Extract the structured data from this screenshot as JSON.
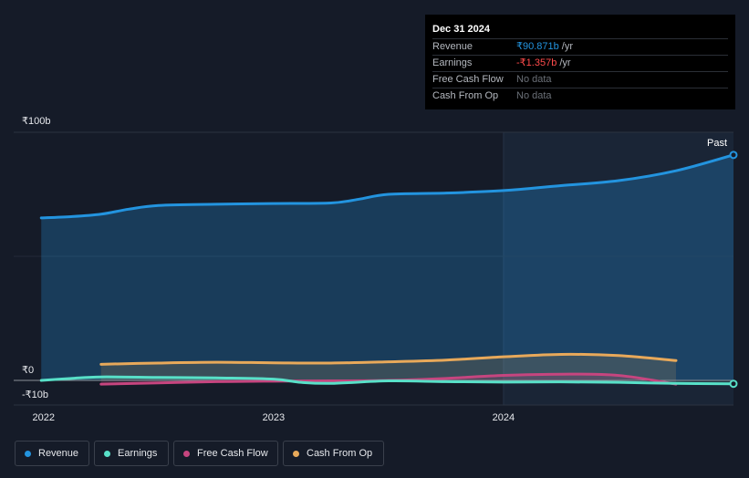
{
  "tooltip": {
    "date": "Dec 31 2024",
    "rows": [
      {
        "label": "Revenue",
        "value": "₹90.871b",
        "unit": "/yr"
      },
      {
        "label": "Earnings",
        "value": "-₹1.357b",
        "unit": "/yr"
      },
      {
        "label": "Free Cash Flow",
        "value": "No data",
        "unit": ""
      },
      {
        "label": "Cash From Op",
        "value": "No data",
        "unit": ""
      }
    ]
  },
  "legend": {
    "revenue": "Revenue",
    "earnings": "Earnings",
    "fcf": "Free Cash Flow",
    "cfo": "Cash From Op"
  },
  "colors": {
    "revenue": "#2394df",
    "earnings": "#58e0c8",
    "fcf": "#c6457f",
    "cfo": "#e8a95a"
  },
  "chart_data": {
    "type": "line",
    "past_label": "Past",
    "y_ticks": [
      {
        "value": 100,
        "label": "₹100b"
      },
      {
        "value": 0,
        "label": "₹0"
      },
      {
        "value": -10,
        "label": "-₹10b"
      }
    ],
    "x_ticks": [
      {
        "value": 2022,
        "label": "2022"
      },
      {
        "value": 2023,
        "label": "2023"
      },
      {
        "value": 2024,
        "label": "2024"
      }
    ],
    "ylim": [
      -10,
      100
    ],
    "xlim": [
      2021.87,
      2025.0
    ],
    "series": [
      {
        "key": "revenue",
        "name": "Revenue",
        "area": true,
        "x": [
          2021.99,
          2022.12,
          2022.25,
          2022.37,
          2022.5,
          2022.75,
          2023.0,
          2023.25,
          2023.37,
          2023.5,
          2023.75,
          2024.0,
          2024.25,
          2024.5,
          2024.75,
          2025.0
        ],
        "y": [
          65.5,
          66.0,
          67.0,
          69.0,
          70.5,
          71.0,
          71.3,
          71.5,
          73.0,
          75.0,
          75.5,
          76.5,
          78.5,
          80.5,
          84.5,
          90.871
        ]
      },
      {
        "key": "earnings",
        "name": "Earnings",
        "area": true,
        "x": [
          2021.99,
          2022.12,
          2022.25,
          2022.5,
          2022.75,
          2023.0,
          2023.12,
          2023.25,
          2023.5,
          2023.75,
          2024.0,
          2024.25,
          2024.5,
          2024.75,
          2025.0
        ],
        "y": [
          0.0,
          0.8,
          1.4,
          1.2,
          1.0,
          0.5,
          -0.8,
          -1.2,
          -0.2,
          -0.5,
          -0.7,
          -0.6,
          -0.8,
          -1.2,
          -1.357
        ]
      },
      {
        "key": "fcf",
        "name": "Free Cash Flow",
        "area": true,
        "x": [
          2022.25,
          2022.5,
          2022.75,
          2023.0,
          2023.25,
          2023.5,
          2023.75,
          2024.0,
          2024.25,
          2024.5,
          2024.75
        ],
        "y": [
          -1.5,
          -1.0,
          -0.5,
          -0.3,
          -0.2,
          0.0,
          0.8,
          2.0,
          2.5,
          2.0,
          -1.5
        ]
      },
      {
        "key": "cfo",
        "name": "Cash From Op",
        "area": true,
        "x": [
          2022.25,
          2022.5,
          2022.75,
          2023.0,
          2023.25,
          2023.5,
          2023.75,
          2024.0,
          2024.25,
          2024.5,
          2024.75
        ],
        "y": [
          6.5,
          7.0,
          7.3,
          7.1,
          7.0,
          7.5,
          8.2,
          9.5,
          10.5,
          10.0,
          8.0
        ]
      }
    ]
  }
}
